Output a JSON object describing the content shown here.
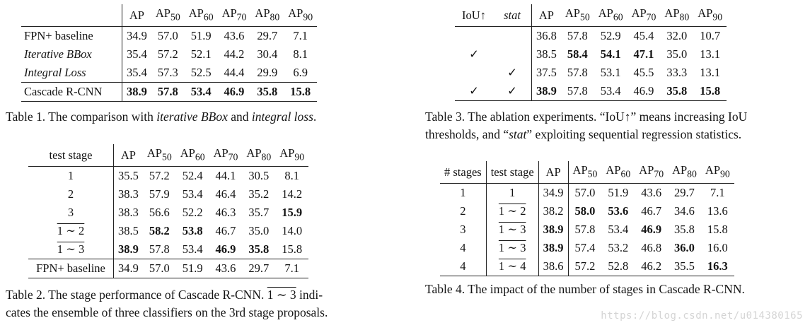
{
  "table1": {
    "headers": [
      "",
      "AP",
      "AP50",
      "AP60",
      "AP70",
      "AP80",
      "AP90"
    ],
    "rows": [
      [
        "FPN+ baseline",
        "34.9",
        "57.0",
        "51.9",
        "43.6",
        "29.7",
        "7.1"
      ],
      [
        "Iterative BBox",
        "35.4",
        "57.2",
        "52.1",
        "44.2",
        "30.4",
        "8.1"
      ],
      [
        "Integral Loss",
        "35.4",
        "57.3",
        "52.5",
        "44.4",
        "29.9",
        "6.9"
      ],
      [
        "Cascade R-CNN",
        "38.9",
        "57.8",
        "53.4",
        "46.9",
        "35.8",
        "15.8"
      ]
    ],
    "caption_a": "Table 1. The comparison with ",
    "caption_b": "iterative BBox",
    "caption_c": " and ",
    "caption_d": "integral loss",
    "caption_e": "."
  },
  "table2": {
    "headers": [
      "test stage",
      "AP",
      "AP50",
      "AP60",
      "AP70",
      "AP80",
      "AP90"
    ],
    "rows": [
      [
        "1",
        "35.5",
        "57.2",
        "52.4",
        "44.1",
        "30.5",
        "8.1"
      ],
      [
        "2",
        "38.3",
        "57.9",
        "53.4",
        "46.4",
        "35.2",
        "14.2"
      ],
      [
        "3",
        "38.3",
        "56.6",
        "52.2",
        "46.3",
        "35.7",
        "15.9"
      ],
      [
        "1 ∼ 2",
        "38.5",
        "58.2",
        "53.8",
        "46.7",
        "35.0",
        "14.0"
      ],
      [
        "1 ∼ 3",
        "38.9",
        "57.8",
        "53.4",
        "46.9",
        "35.8",
        "15.8"
      ],
      [
        "FPN+ baseline",
        "34.9",
        "57.0",
        "51.9",
        "43.6",
        "29.7",
        "7.1"
      ]
    ],
    "caption_a": "Table 2. The stage performance of Cascade R-CNN. ",
    "caption_b": "1 ∼ 3",
    "caption_c": " indi-",
    "caption_line2": "cates the ensemble of three classifiers on the 3rd stage proposals."
  },
  "table3": {
    "headers": [
      "IoU↑",
      "stat",
      "AP",
      "AP50",
      "AP60",
      "AP70",
      "AP80",
      "AP90"
    ],
    "rows": [
      [
        "",
        "",
        "36.8",
        "57.8",
        "52.9",
        "45.4",
        "32.0",
        "10.7"
      ],
      [
        "✓",
        "",
        "38.5",
        "58.4",
        "54.1",
        "47.1",
        "35.0",
        "13.1"
      ],
      [
        "",
        "✓",
        "37.5",
        "57.8",
        "53.1",
        "45.5",
        "33.3",
        "13.1"
      ],
      [
        "✓",
        "✓",
        "38.9",
        "57.8",
        "53.4",
        "46.9",
        "35.8",
        "15.8"
      ]
    ],
    "caption_a": "Table 3. The ablation experiments. “IoU↑” means increasing IoU",
    "caption_b": "thresholds, and “",
    "caption_c": "stat",
    "caption_d": "” exploiting sequential regression statistics."
  },
  "table4": {
    "headers": [
      "# stages",
      "test stage",
      "AP",
      "AP50",
      "AP60",
      "AP70",
      "AP80",
      "AP90"
    ],
    "rows": [
      [
        "1",
        "1",
        "34.9",
        "57.0",
        "51.9",
        "43.6",
        "29.7",
        "7.1"
      ],
      [
        "2",
        "1 ∼ 2",
        "38.2",
        "58.0",
        "53.6",
        "46.7",
        "34.6",
        "13.6"
      ],
      [
        "3",
        "1 ∼ 3",
        "38.9",
        "57.8",
        "53.4",
        "46.9",
        "35.8",
        "15.8"
      ],
      [
        "4",
        "1 ∼ 3",
        "38.9",
        "57.4",
        "53.2",
        "46.8",
        "36.0",
        "16.0"
      ],
      [
        "4",
        "1 ∼ 4",
        "38.6",
        "57.2",
        "52.8",
        "46.2",
        "35.5",
        "16.3"
      ]
    ],
    "caption": "Table 4. The impact of the number of stages in Cascade R-CNN."
  },
  "watermark": "https://blog.csdn.net/u014380165"
}
